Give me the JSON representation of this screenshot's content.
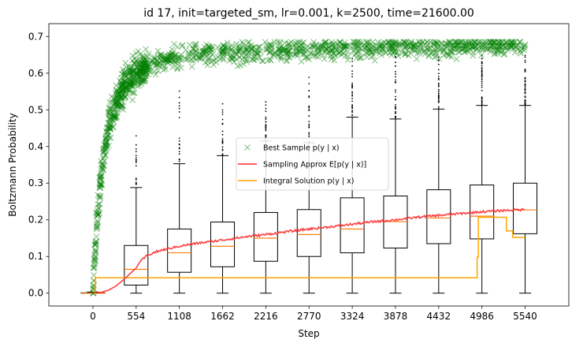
{
  "chart_data": {
    "type": "box",
    "title": "id 17, init=targeted_sm, lr=0.001, k=2500, time=21600.00",
    "xlabel": "Step",
    "ylabel": "Boltzmann Probability",
    "xlim": [
      -565,
      6100
    ],
    "ylim": [
      -0.035,
      0.735
    ],
    "x_ticks": [
      0,
      554,
      1108,
      1662,
      2216,
      2770,
      3324,
      3878,
      4432,
      4986,
      5540
    ],
    "x_tick_labels": [
      "0",
      "554",
      "1108",
      "1662",
      "2216",
      "2770",
      "3324",
      "3878",
      "4432",
      "4986",
      "5540"
    ],
    "y_ticks": [
      0.0,
      0.1,
      0.2,
      0.3,
      0.4,
      0.5,
      0.6,
      0.7
    ],
    "y_tick_labels": [
      "0.0",
      "0.1",
      "0.2",
      "0.3",
      "0.4",
      "0.5",
      "0.6",
      "0.7"
    ],
    "grid": false,
    "legend_position": "center",
    "boxplots": [
      {
        "x": 0,
        "whislo": 0.0,
        "q1": 0.0,
        "median": 0.0,
        "q3": 0.001,
        "whishi": 0.003
      },
      {
        "x": 554,
        "whislo": 0.0,
        "q1": 0.022,
        "median": 0.065,
        "q3": 0.13,
        "whishi": 0.288,
        "flier_max": 0.43
      },
      {
        "x": 1108,
        "whislo": 0.0,
        "q1": 0.057,
        "median": 0.11,
        "q3": 0.175,
        "whishi": 0.353,
        "flier_max": 0.56
      },
      {
        "x": 1662,
        "whislo": 0.0,
        "q1": 0.072,
        "median": 0.128,
        "q3": 0.194,
        "whishi": 0.375,
        "flier_max": 0.53
      },
      {
        "x": 2216,
        "whislo": 0.0,
        "q1": 0.087,
        "median": 0.15,
        "q3": 0.22,
        "whishi": 0.415,
        "flier_max": 0.53
      },
      {
        "x": 2770,
        "whislo": 0.0,
        "q1": 0.1,
        "median": 0.16,
        "q3": 0.228,
        "whishi": 0.41,
        "flier_max": 0.59
      },
      {
        "x": 3324,
        "whislo": 0.0,
        "q1": 0.11,
        "median": 0.175,
        "q3": 0.26,
        "whishi": 0.48,
        "flier_max": 0.64
      },
      {
        "x": 3878,
        "whislo": 0.0,
        "q1": 0.123,
        "median": 0.195,
        "q3": 0.265,
        "whishi": 0.475,
        "flier_max": 0.65
      },
      {
        "x": 4432,
        "whislo": 0.0,
        "q1": 0.135,
        "median": 0.205,
        "q3": 0.282,
        "whishi": 0.502,
        "flier_max": 0.65
      },
      {
        "x": 4986,
        "whislo": 0.0,
        "q1": 0.148,
        "median": 0.21,
        "q3": 0.295,
        "whishi": 0.512,
        "flier_max": 0.65
      },
      {
        "x": 5540,
        "whislo": 0.0,
        "q1": 0.162,
        "median": 0.227,
        "q3": 0.3,
        "whishi": 0.512,
        "flier_max": 0.65
      }
    ],
    "series": [
      {
        "name": "Best Sample $p(y \\mid x)$",
        "legend_label": "Best Sample p(y | x)",
        "kind": "scatter",
        "marker": "x",
        "color": "#008000",
        "x": [
          0,
          50,
          100,
          150,
          200,
          300,
          400,
          554,
          700,
          900,
          1108,
          1300,
          1662,
          2000,
          2500,
          3000,
          4000,
          5000,
          5540
        ],
        "y": [
          0.0,
          0.19,
          0.31,
          0.39,
          0.45,
          0.52,
          0.57,
          0.6,
          0.62,
          0.63,
          0.64,
          0.645,
          0.65,
          0.655,
          0.66,
          0.665,
          0.67,
          0.675,
          0.678
        ]
      },
      {
        "name": "Sampling Approx $E[p(y \\mid x)]$",
        "legend_label": "Sampling Approx E[p(y | x)]",
        "kind": "line",
        "color": "#ff2a2a",
        "x": [
          0,
          100,
          200,
          300,
          400,
          500,
          554,
          600,
          700,
          800,
          900,
          1000,
          1108,
          1300,
          1662,
          2000,
          2216,
          2500,
          2770,
          3000,
          3324,
          3600,
          3878,
          4200,
          4432,
          4700,
          4986,
          5300,
          5540
        ],
        "y": [
          0.0,
          0.002,
          0.008,
          0.02,
          0.038,
          0.058,
          0.068,
          0.085,
          0.104,
          0.112,
          0.118,
          0.123,
          0.128,
          0.135,
          0.145,
          0.155,
          0.16,
          0.168,
          0.175,
          0.18,
          0.188,
          0.195,
          0.2,
          0.208,
          0.212,
          0.217,
          0.222,
          0.226,
          0.228
        ]
      },
      {
        "name": "Integral Solution $p(y \\mid x)$",
        "legend_label": "Integral Solution p(y | x)",
        "kind": "step",
        "color": "#ffa500",
        "x": [
          0,
          30,
          4910,
          4925,
          4940,
          5240,
          5300,
          5380,
          5380,
          5540
        ],
        "y": [
          0.0,
          0.042,
          0.042,
          0.098,
          0.207,
          0.207,
          0.17,
          0.17,
          0.152,
          0.152
        ]
      }
    ]
  }
}
